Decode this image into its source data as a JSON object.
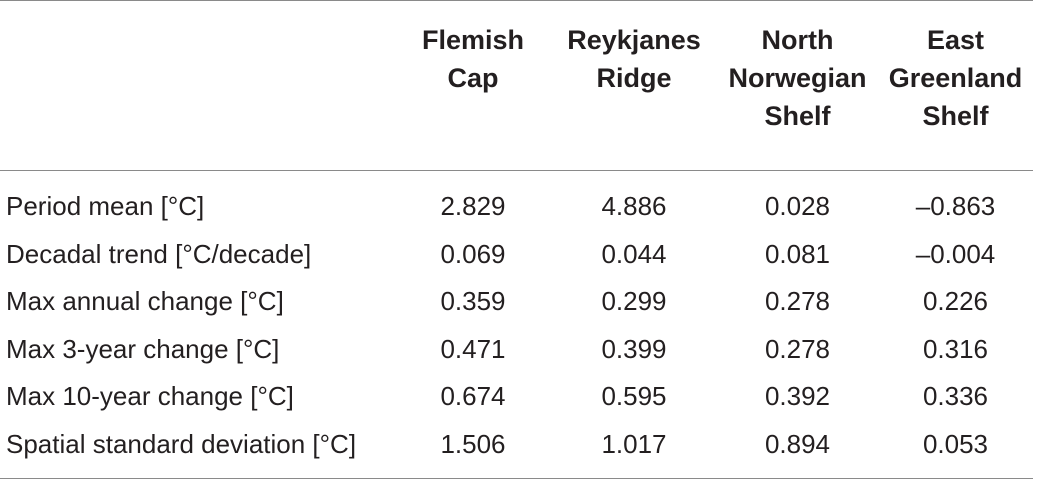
{
  "table": {
    "columns": [
      {
        "lines": [
          ""
        ]
      },
      {
        "lines": [
          "Flemish",
          "Cap"
        ]
      },
      {
        "lines": [
          "Reykjanes",
          "Ridge"
        ]
      },
      {
        "lines": [
          "North",
          "Norwegian",
          "Shelf"
        ]
      },
      {
        "lines": [
          "East",
          "Greenland",
          "Shelf"
        ]
      }
    ],
    "rows": [
      {
        "label": "Period mean [°C]",
        "values": [
          "2.829",
          "4.886",
          "0.028",
          "–0.863"
        ]
      },
      {
        "label": "Decadal trend [°C/decade]",
        "values": [
          "0.069",
          "0.044",
          "0.081",
          "–0.004"
        ]
      },
      {
        "label": "Max annual change [°C]",
        "values": [
          "0.359",
          "0.299",
          "0.278",
          "0.226"
        ]
      },
      {
        "label": "Max 3-year change [°C]",
        "values": [
          "0.471",
          "0.399",
          "0.278",
          "0.316"
        ]
      },
      {
        "label": "Max 10-year change [°C]",
        "values": [
          "0.674",
          "0.595",
          "0.392",
          "0.336"
        ]
      },
      {
        "label": "Spatial standard deviation [°C]",
        "values": [
          "1.506",
          "1.017",
          "0.894",
          "0.053"
        ]
      }
    ]
  }
}
